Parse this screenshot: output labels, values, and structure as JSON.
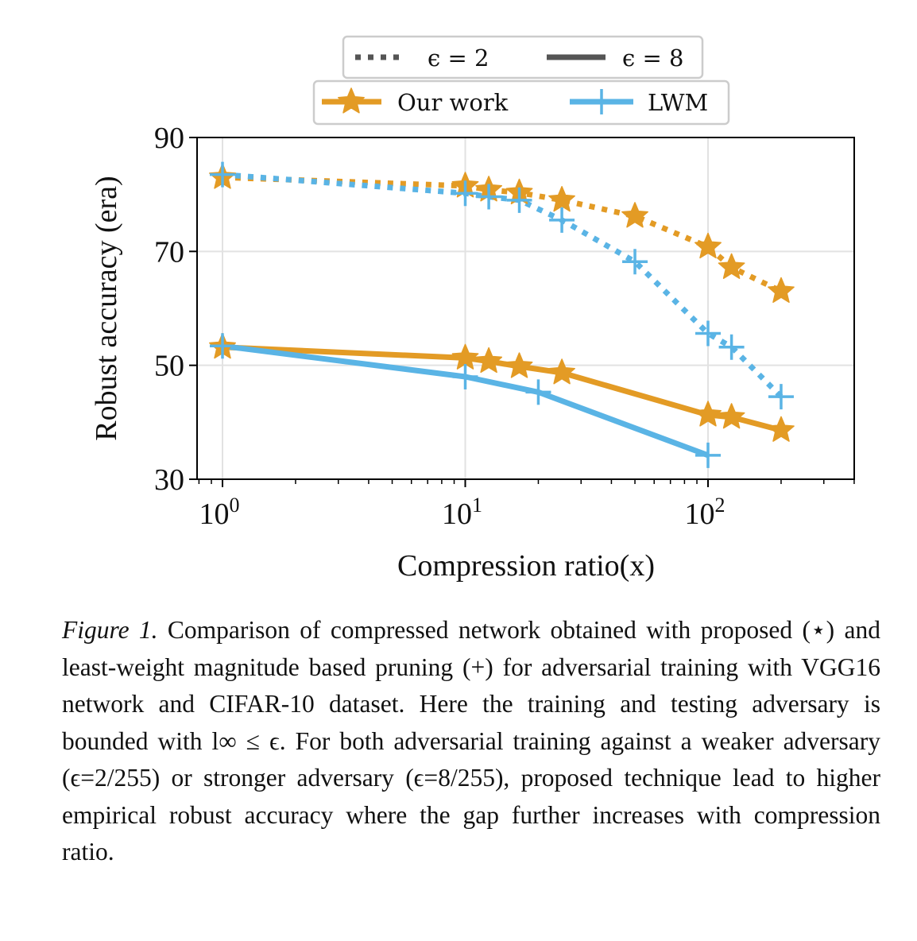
{
  "chart_data": {
    "type": "line",
    "xlabel": "Compression ratio(x)",
    "ylabel": "Robust accuracy (era)",
    "xscale": "log",
    "xlim": [
      0.8,
      400
    ],
    "ylim": [
      30,
      90
    ],
    "yticks": [
      "30",
      "50",
      "70",
      "90"
    ],
    "xticks": [
      {
        "value": 1,
        "base": "10",
        "exp": "0"
      },
      {
        "value": 10,
        "base": "10",
        "exp": "1"
      },
      {
        "value": 100,
        "base": "10",
        "exp": "2"
      }
    ],
    "grid": true,
    "legend_eps": [
      {
        "label": "ϵ = 2",
        "style": "dotted"
      },
      {
        "label": "ϵ = 8",
        "style": "solid"
      }
    ],
    "legend_methods": [
      {
        "label": "Our work",
        "marker": "star",
        "color": "#E39B25"
      },
      {
        "label": "LWM",
        "marker": "plus",
        "color": "#5AB4E5"
      }
    ],
    "legend_placement": "above plot",
    "series": [
      {
        "name": "Our work",
        "eps": "ϵ = 2",
        "style": "dotted",
        "color": "#E39B25",
        "marker": "star",
        "x": [
          1,
          10,
          12.5,
          16.7,
          25,
          50,
          100,
          125,
          200
        ],
        "y": [
          83,
          81.5,
          80.8,
          80.3,
          79,
          76.2,
          70.8,
          67.2,
          63
        ]
      },
      {
        "name": "LWM",
        "eps": "ϵ = 2",
        "style": "dotted",
        "color": "#5AB4E5",
        "marker": "plus",
        "x": [
          1,
          10,
          12.5,
          16.7,
          25,
          50,
          100,
          125,
          200
        ],
        "y": [
          83.5,
          80.2,
          79.6,
          79,
          75.5,
          68.2,
          55.6,
          53.2,
          44.5
        ]
      },
      {
        "name": "Our work",
        "eps": "ϵ = 8",
        "style": "solid",
        "color": "#E39B25",
        "marker": "star",
        "x": [
          1,
          10,
          12.5,
          16.7,
          25,
          100,
          125,
          200
        ],
        "y": [
          53.2,
          51.3,
          50.7,
          49.8,
          48.7,
          41.3,
          40.9,
          38.6
        ]
      },
      {
        "name": "LWM",
        "eps": "ϵ = 8",
        "style": "solid",
        "color": "#5AB4E5",
        "marker": "plus",
        "x": [
          1,
          10,
          20,
          100
        ],
        "y": [
          53.4,
          48,
          45.3,
          34.2
        ]
      }
    ]
  },
  "caption": {
    "label": "Figure 1.",
    "text": " Comparison of compressed network obtained with proposed (⋆) and least-weight magnitude based pruning (+) for adversarial training with VGG16 network and CIFAR-10 dataset. Here the training and testing adversary is bounded with l∞ ≤ ϵ. For both adversarial training against a weaker adversary (ϵ=2/255) or stronger adversary (ϵ=8/255), proposed technique lead to higher empirical robust accuracy where the gap further increases with compression ratio."
  }
}
